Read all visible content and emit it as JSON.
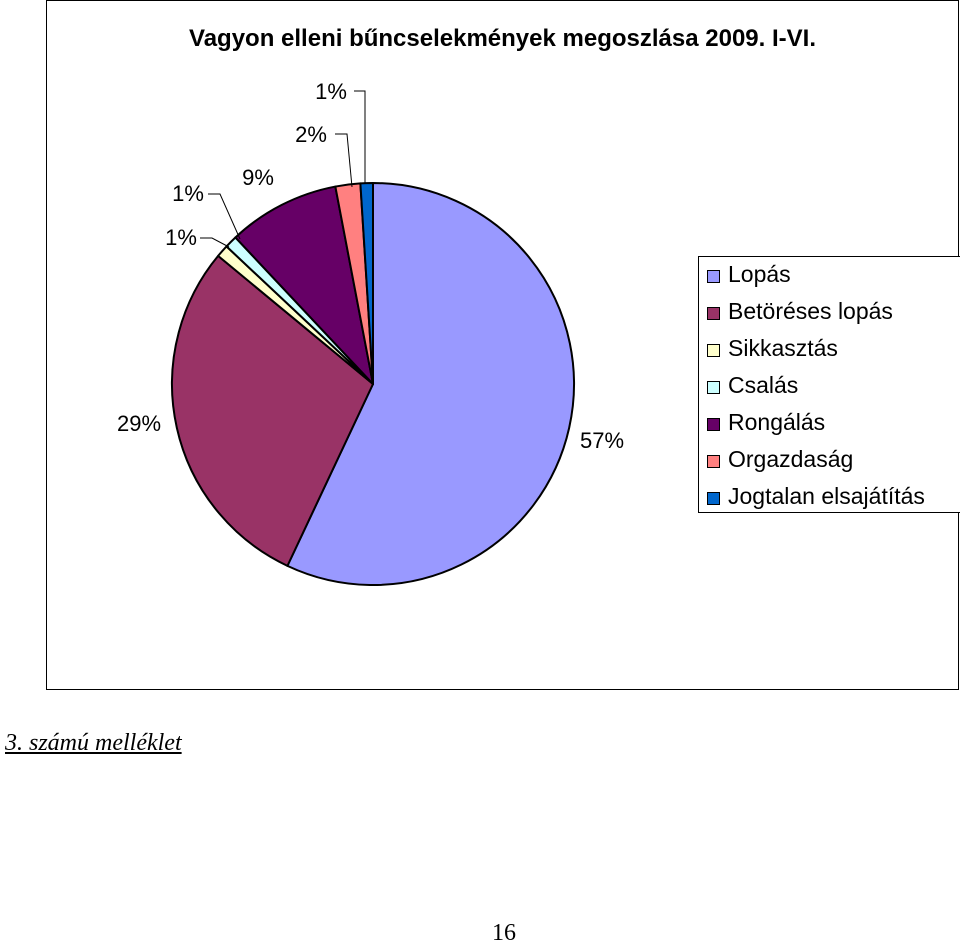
{
  "chart_data": {
    "type": "pie",
    "title": "Vagyon elleni bűncselekmények megoszlása 2009. I-VI.",
    "categories": [
      "Lopás",
      "Betöréses lopás",
      "Sikkasztás",
      "Csalás",
      "Rongálás",
      "Orgazdaság",
      "Jogtalan elsajátítás"
    ],
    "values": [
      57,
      29,
      1,
      1,
      9,
      2,
      1
    ],
    "labels": [
      "57%",
      "29%",
      "1%",
      "1%",
      "9%",
      "2%",
      "1%"
    ],
    "colors": [
      "#9999ff",
      "#993366",
      "#ffffcc",
      "#ccffff",
      "#660066",
      "#ff8080",
      "#0066cc"
    ],
    "legend_position": "right"
  },
  "caption": "3. számú melléklet",
  "page_number": "16"
}
